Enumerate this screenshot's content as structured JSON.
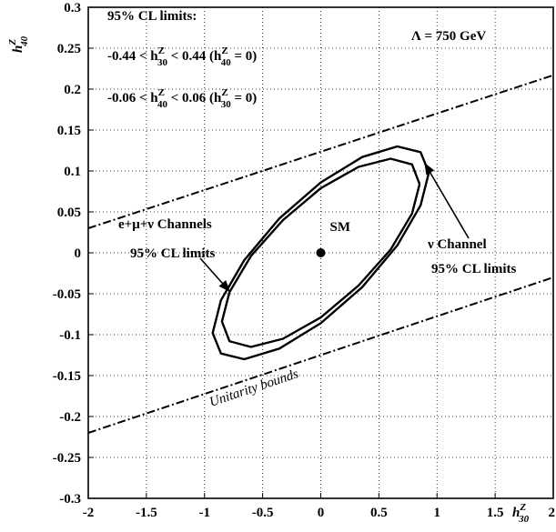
{
  "chart_data": {
    "type": "contour",
    "x_label": [
      "h",
      "Z",
      "30"
    ],
    "y_label": [
      "h",
      "Z",
      "40"
    ],
    "xlim": [
      -2,
      2
    ],
    "ylim": [
      -0.3,
      0.3
    ],
    "xticks": [
      -2,
      -1.5,
      -1,
      -0.5,
      0,
      0.5,
      1,
      1.5,
      2
    ],
    "yticks": [
      -0.3,
      -0.25,
      -0.2,
      -0.15,
      -0.1,
      -0.05,
      0,
      0.05,
      0.1,
      0.15,
      0.2,
      0.25,
      0.3
    ],
    "grid": true,
    "color": "#000000",
    "series": [
      {
        "style": "solid",
        "x": [
          0.93,
          0.859,
          0.658,
          0.356,
          0,
          -0.356,
          -0.658,
          -0.859,
          -0.93,
          -0.859,
          -0.658,
          -0.356,
          0,
          0.356,
          0.658,
          0.859,
          0.93
        ],
        "y": [
          0.098,
          0.123,
          0.13,
          0.117,
          0.086,
          0.042,
          -0.009,
          -0.058,
          -0.098,
          -0.123,
          -0.13,
          -0.117,
          -0.086,
          -0.042,
          0.009,
          0.058,
          0.098
        ]
      },
      {
        "style": "solid",
        "x": [
          0.85,
          0.785,
          0.601,
          0.325,
          0,
          -0.325,
          -0.601,
          -0.785,
          -0.85,
          -0.785,
          -0.601,
          -0.325,
          0,
          0.325,
          0.601,
          0.785,
          0.85
        ],
        "y": [
          0.084,
          0.108,
          0.115,
          0.105,
          0.079,
          0.04,
          -0.004,
          -0.048,
          -0.084,
          -0.108,
          -0.115,
          -0.105,
          -0.079,
          -0.04,
          0.004,
          0.048,
          0.084
        ]
      },
      {
        "style": "dashed",
        "x": [
          -2,
          2
        ],
        "y": [
          0.03,
          0.217
        ]
      },
      {
        "style": "dashed",
        "x": [
          -2,
          2
        ],
        "y": [
          -0.22,
          -0.03
        ]
      }
    ],
    "point": {
      "x": 0,
      "y": 0,
      "label": "SM"
    },
    "annotations": {
      "heading": "95% CL limits:",
      "limit_1": [
        "-0.44 < h",
        "Z",
        "30",
        " < 0.44 (h",
        "Z",
        "40",
        " = 0)"
      ],
      "limit_2": [
        "-0.06 < h",
        "Z",
        "40",
        " < 0.06 (h",
        "Z",
        "30",
        " = 0)"
      ],
      "scale": "Λ = 750 GeV",
      "combined_1": "e+μ+ν Channels",
      "combined_2": "95% CL limits",
      "nu_1": "ν Channel",
      "nu_2": "95% CL limits",
      "unitarity": "Unitarity bounds"
    }
  }
}
